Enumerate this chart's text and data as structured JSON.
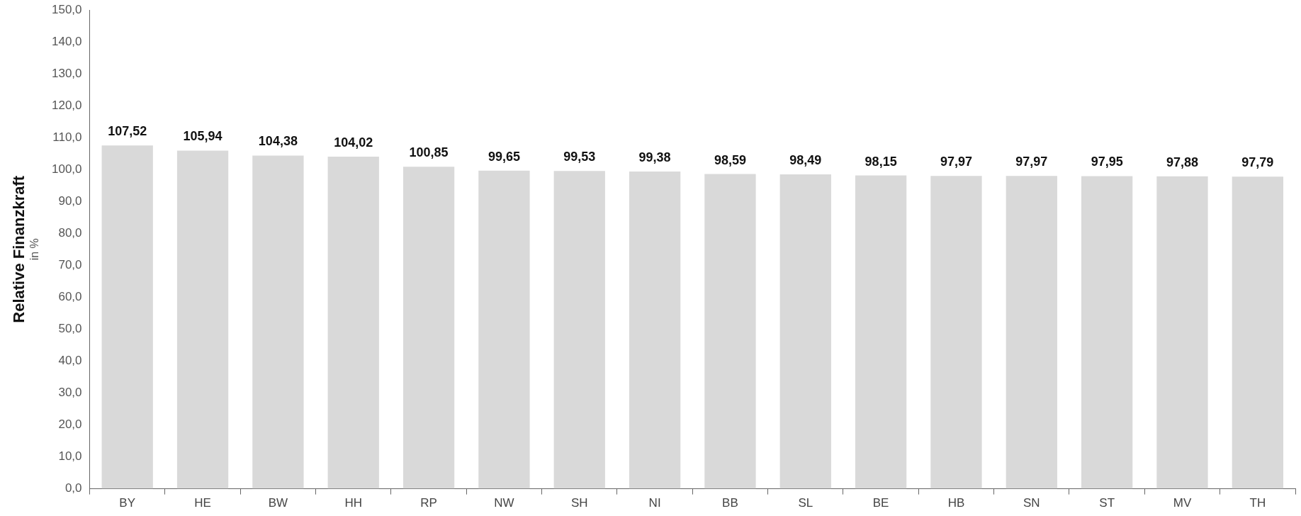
{
  "chart_data": {
    "type": "bar",
    "ylabel": "Relative Finanzkraft\nin %",
    "categories": [
      "BY",
      "HE",
      "BW",
      "HH",
      "RP",
      "NW",
      "SH",
      "NI",
      "BB",
      "SL",
      "BE",
      "HB",
      "SN",
      "ST",
      "MV",
      "TH"
    ],
    "values": [
      107.52,
      105.94,
      104.38,
      104.02,
      100.85,
      99.65,
      99.53,
      99.38,
      98.59,
      98.49,
      98.15,
      97.97,
      97.97,
      97.95,
      97.88,
      97.79
    ],
    "value_labels": [
      "107,52",
      "105,94",
      "104,38",
      "104,02",
      "100,85",
      "99,65",
      "99,53",
      "99,38",
      "98,59",
      "98,49",
      "98,15",
      "97,97",
      "97,97",
      "97,95",
      "97,88",
      "97,79"
    ],
    "color": "#d9d9d9",
    "ylim": [
      0,
      150
    ],
    "yticks": [
      {
        "value": 0,
        "label": "0,0"
      },
      {
        "value": 10,
        "label": "10,0"
      },
      {
        "value": 20,
        "label": "20,0"
      },
      {
        "value": 30,
        "label": "30,0"
      },
      {
        "value": 40,
        "label": "40,0"
      },
      {
        "value": 50,
        "label": "50,0"
      },
      {
        "value": 60,
        "label": "60,0"
      },
      {
        "value": 70,
        "label": "70,0"
      },
      {
        "value": 80,
        "label": "80,0"
      },
      {
        "value": 90,
        "label": "90,0"
      },
      {
        "value": 100,
        "label": "100,0"
      },
      {
        "value": 110,
        "label": "110,0"
      },
      {
        "value": 120,
        "label": "120,0"
      },
      {
        "value": 130,
        "label": "130,0"
      },
      {
        "value": 140,
        "label": "140,0"
      },
      {
        "value": 150,
        "label": "150,0"
      }
    ],
    "grid": false,
    "legend": false
  }
}
